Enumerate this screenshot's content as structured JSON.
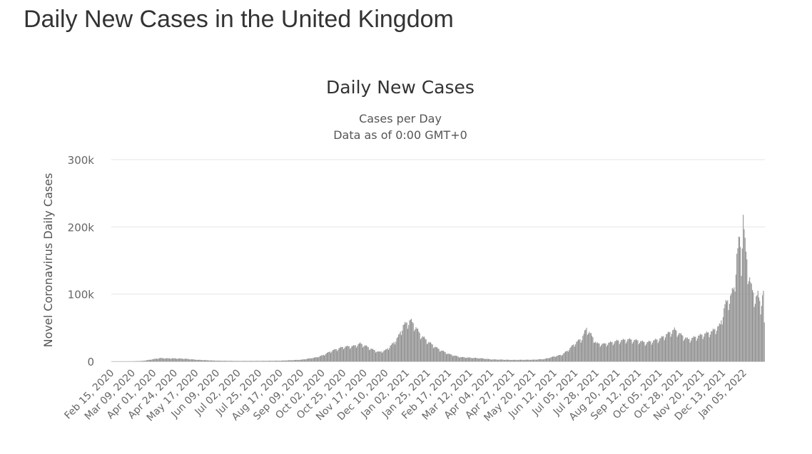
{
  "page": {
    "heading": "Daily New Cases in the United Kingdom"
  },
  "colors": {
    "bars": "#8c8c8c",
    "grid": "#e6e6e6",
    "text": "#333333",
    "axis_text": "#666666"
  },
  "chart_data": {
    "type": "bar",
    "title": "Daily New Cases",
    "subtitle": [
      "Cases per Day",
      "Data as of 0:00 GMT+0"
    ],
    "ylabel": "Novel Coronavirus Daily Cases",
    "xlabel": "",
    "ylim": [
      0,
      300000
    ],
    "y_ticks": [
      0,
      100000,
      200000,
      300000
    ],
    "y_tick_labels": [
      "0",
      "100k",
      "200k",
      "300k"
    ],
    "grid": true,
    "legend": "none",
    "x_start": "2020-02-15",
    "x_end": "2022-01-27",
    "x_tick_labels": [
      "Feb 15, 2020",
      "Mar 09, 2020",
      "Apr 01, 2020",
      "Apr 24, 2020",
      "May 17, 2020",
      "Jun 09, 2020",
      "Jul 02, 2020",
      "Jul 25, 2020",
      "Aug 17, 2020",
      "Sep 09, 2020",
      "Oct 02, 2020",
      "Oct 25, 2020",
      "Nov 17, 2020",
      "Dec 10, 2020",
      "Jan 02, 2021",
      "Jan 25, 2021",
      "Feb 17, 2021",
      "Mar 12, 2021",
      "Apr 04, 2021",
      "Apr 27, 2021",
      "May 20, 2021",
      "Jun 12, 2021",
      "Jul 05, 2021",
      "Jul 28, 2021",
      "Aug 20, 2021",
      "Sep 12, 2021",
      "Oct 05, 2021",
      "Oct 28, 2021",
      "Nov 20, 2021",
      "Dec 13, 2021",
      "Jan 05, 2022"
    ],
    "series": [
      {
        "points": [
          [
            "2020-02-15",
            0
          ],
          [
            "2020-03-09",
            100
          ],
          [
            "2020-03-20",
            700
          ],
          [
            "2020-04-01",
            3500
          ],
          [
            "2020-04-08",
            5000
          ],
          [
            "2020-04-15",
            4500
          ],
          [
            "2020-04-24",
            4500
          ],
          [
            "2020-05-05",
            4000
          ],
          [
            "2020-05-17",
            2500
          ],
          [
            "2020-06-01",
            1500
          ],
          [
            "2020-06-09",
            1000
          ],
          [
            "2020-07-02",
            600
          ],
          [
            "2020-07-25",
            700
          ],
          [
            "2020-08-17",
            1000
          ],
          [
            "2020-09-09",
            2500
          ],
          [
            "2020-09-25",
            6000
          ],
          [
            "2020-10-02",
            9000
          ],
          [
            "2020-10-12",
            16000
          ],
          [
            "2020-10-25",
            22000
          ],
          [
            "2020-11-05",
            23000
          ],
          [
            "2020-11-12",
            27000
          ],
          [
            "2020-11-17",
            24000
          ],
          [
            "2020-11-27",
            17000
          ],
          [
            "2020-12-03",
            14000
          ],
          [
            "2020-12-10",
            17000
          ],
          [
            "2020-12-18",
            27000
          ],
          [
            "2020-12-24",
            38000
          ],
          [
            "2020-12-29",
            54000
          ],
          [
            "2021-01-02",
            58000
          ],
          [
            "2021-01-06",
            62000
          ],
          [
            "2021-01-10",
            55000
          ],
          [
            "2021-01-17",
            40000
          ],
          [
            "2021-01-25",
            30000
          ],
          [
            "2021-02-05",
            19000
          ],
          [
            "2021-02-17",
            11000
          ],
          [
            "2021-03-01",
            6500
          ],
          [
            "2021-03-12",
            5500
          ],
          [
            "2021-03-25",
            4500
          ],
          [
            "2021-04-04",
            3000
          ],
          [
            "2021-04-27",
            2200
          ],
          [
            "2021-05-20",
            2500
          ],
          [
            "2021-06-01",
            3500
          ],
          [
            "2021-06-12",
            7500
          ],
          [
            "2021-06-20",
            10000
          ],
          [
            "2021-06-26",
            16000
          ],
          [
            "2021-07-05",
            28000
          ],
          [
            "2021-07-12",
            35000
          ],
          [
            "2021-07-17",
            50000
          ],
          [
            "2021-07-22",
            40000
          ],
          [
            "2021-07-28",
            27000
          ],
          [
            "2021-08-05",
            26000
          ],
          [
            "2021-08-20",
            31000
          ],
          [
            "2021-09-01",
            33000
          ],
          [
            "2021-09-12",
            31000
          ],
          [
            "2021-09-20",
            28000
          ],
          [
            "2021-10-05",
            34000
          ],
          [
            "2021-10-15",
            43000
          ],
          [
            "2021-10-21",
            48000
          ],
          [
            "2021-10-28",
            40000
          ],
          [
            "2021-11-05",
            33000
          ],
          [
            "2021-11-20",
            40000
          ],
          [
            "2021-12-01",
            45000
          ],
          [
            "2021-12-10",
            55000
          ],
          [
            "2021-12-15",
            85000
          ],
          [
            "2021-12-20",
            95000
          ],
          [
            "2021-12-25",
            110000
          ],
          [
            "2021-12-28",
            160000
          ],
          [
            "2021-12-31",
            185000
          ],
          [
            "2022-01-02",
            155000
          ],
          [
            "2022-01-04",
            218000
          ],
          [
            "2022-01-06",
            175000
          ],
          [
            "2022-01-09",
            140000
          ],
          [
            "2022-01-13",
            110000
          ],
          [
            "2022-01-17",
            95000
          ],
          [
            "2022-01-20",
            100000
          ],
          [
            "2022-01-23",
            85000
          ],
          [
            "2022-01-26",
            105000
          ],
          [
            "2022-01-27",
            55000
          ]
        ]
      }
    ]
  }
}
